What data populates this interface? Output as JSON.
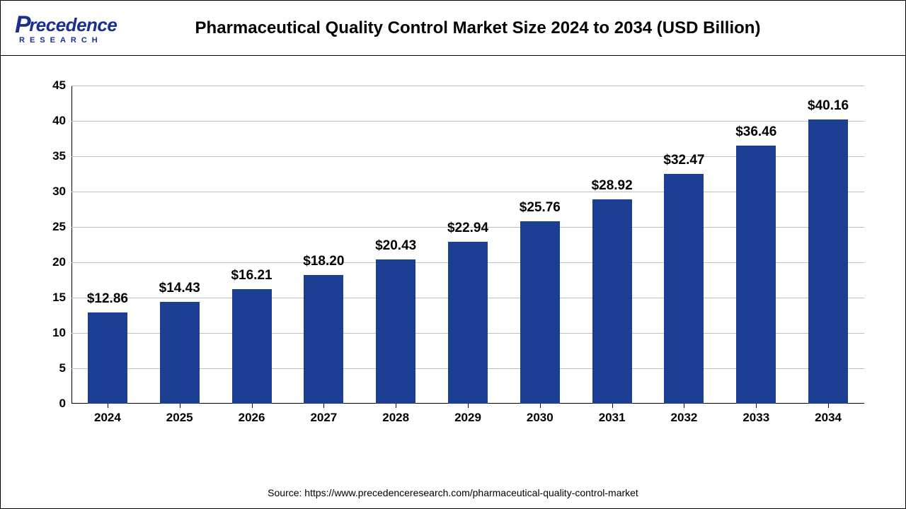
{
  "header": {
    "logo_line1": "recedence",
    "logo_p": "P",
    "logo_line2": "RESEARCH",
    "title": "Pharmaceutical Quality Control Market Size 2024 to 2034 (USD Billion)"
  },
  "chart": {
    "type": "bar",
    "categories": [
      "2024",
      "2025",
      "2026",
      "2027",
      "2028",
      "2029",
      "2030",
      "2031",
      "2032",
      "2033",
      "2034"
    ],
    "values": [
      12.86,
      14.43,
      16.21,
      18.2,
      20.43,
      22.94,
      25.76,
      28.92,
      32.47,
      36.46,
      40.16
    ],
    "value_labels": [
      "$12.86",
      "$14.43",
      "$16.21",
      "$18.20",
      "$20.43",
      "$22.94",
      "$25.76",
      "$28.92",
      "$32.47",
      "$36.46",
      "$40.16"
    ],
    "bar_color": "#1c3f94",
    "ylim": [
      0,
      45
    ],
    "ytick_step": 5,
    "yticks": [
      "0",
      "5",
      "10",
      "15",
      "20",
      "25",
      "30",
      "35",
      "40",
      "45"
    ],
    "grid_color": "#bfbfbf",
    "background_color": "#ffffff",
    "bar_width_ratio": 0.55,
    "title_fontsize": 24,
    "label_fontsize": 19,
    "tick_fontsize": 17
  },
  "source": "Source: https://www.precedenceresearch.com/pharmaceutical-quality-control-market"
}
